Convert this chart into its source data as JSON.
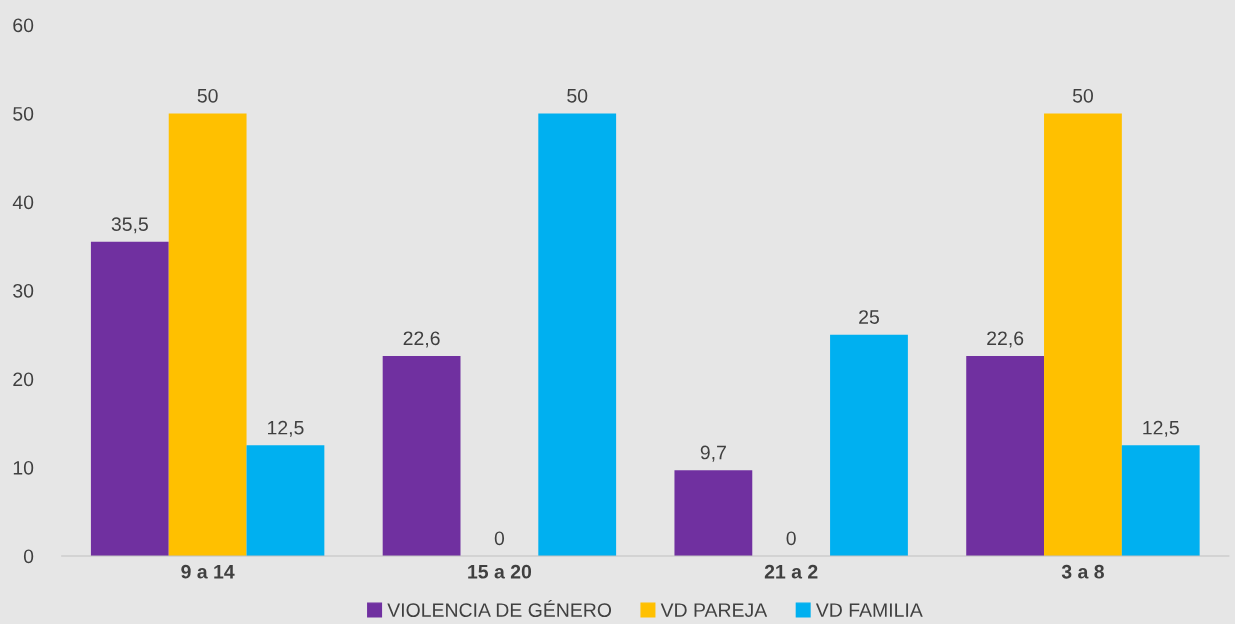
{
  "chart_data": {
    "type": "bar",
    "categories": [
      "9 a 14",
      "15 a 20",
      "21 a 2",
      "3 a 8"
    ],
    "series": [
      {
        "name": "VIOLENCIA DE GÉNERO",
        "color": "#7030a0",
        "values": [
          35.5,
          22.6,
          9.7,
          22.6
        ],
        "value_labels": [
          "35,5",
          "22,6",
          "9,7",
          "22,6"
        ]
      },
      {
        "name": "VD PAREJA",
        "color": "#ffc000",
        "values": [
          50,
          0,
          0,
          50
        ],
        "value_labels": [
          "50",
          "0",
          "0",
          "50"
        ]
      },
      {
        "name": "VD FAMILIA",
        "color": "#00b0f0",
        "values": [
          12.5,
          50,
          25,
          12.5
        ],
        "value_labels": [
          "12,5",
          "50",
          "25",
          "12,5"
        ]
      }
    ],
    "ylim": [
      0,
      60
    ],
    "yticks": [
      0,
      10,
      20,
      30,
      40,
      50,
      60
    ],
    "grid": false,
    "legend": "bottom"
  }
}
